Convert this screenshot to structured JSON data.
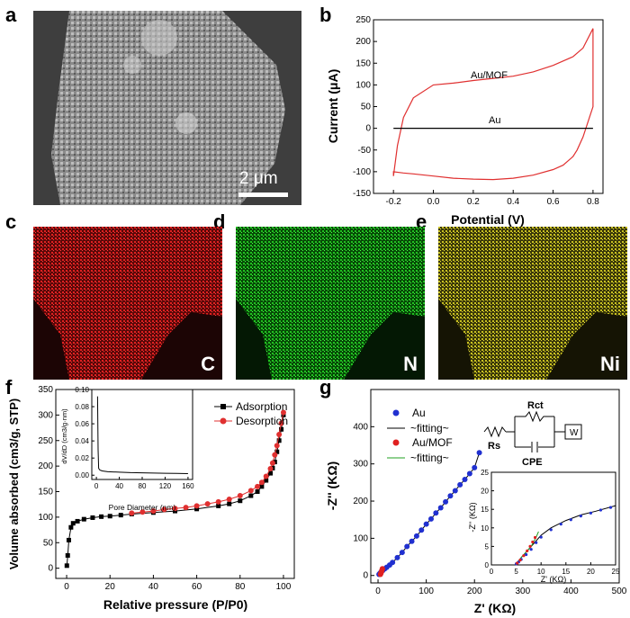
{
  "panel_labels": {
    "a": "a",
    "b": "b",
    "c": "c",
    "d": "d",
    "e": "e",
    "f": "f",
    "g": "g"
  },
  "sem": {
    "scale_bar": "2 μm"
  },
  "maps": [
    {
      "element": "C",
      "color": "#d01818"
    },
    {
      "element": "N",
      "color": "#18b018"
    },
    {
      "element": "Ni",
      "color": "#c8c020"
    }
  ],
  "chart_data": [
    {
      "panel": "b",
      "type": "line",
      "xlabel": "Potential (V)",
      "ylabel": "Current (μA)",
      "xlim": [
        -0.3,
        0.85
      ],
      "ylim": [
        -150,
        250
      ],
      "xticks": [
        "-0.2",
        "0.0",
        "0.2",
        "0.4",
        "0.6",
        "0.8"
      ],
      "yticks": [
        "-150",
        "-100",
        "-50",
        "0",
        "50",
        "100",
        "150",
        "200",
        "250"
      ],
      "series": [
        {
          "name": "Au/MOF",
          "color": "#e03030",
          "x": [
            -0.2,
            -0.18,
            -0.15,
            -0.1,
            0,
            0.1,
            0.2,
            0.3,
            0.4,
            0.5,
            0.6,
            0.7,
            0.75,
            0.8,
            0.8,
            0.8,
            0.75,
            0.72,
            0.7,
            0.65,
            0.6,
            0.5,
            0.4,
            0.3,
            0.2,
            0.1,
            0,
            -0.1,
            -0.15,
            -0.2,
            -0.2
          ],
          "y": [
            -110,
            -40,
            25,
            70,
            100,
            104,
            110,
            115,
            120,
            130,
            145,
            165,
            185,
            230,
            100,
            50,
            -20,
            -50,
            -65,
            -85,
            -95,
            -108,
            -115,
            -118,
            -117,
            -115,
            -110,
            -105,
            -103,
            -100,
            -110
          ]
        },
        {
          "name": "Au",
          "color": "#000000",
          "x": [
            -0.2,
            0.8
          ],
          "y": [
            0,
            0
          ]
        }
      ],
      "annotations": [
        "Au/MOF",
        "Au"
      ]
    },
    {
      "panel": "f",
      "type": "line",
      "xlabel": "Relative pressure (P/P0)",
      "ylabel": "Volume absorbed (cm3/g, STP)",
      "xlim": [
        -5,
        105
      ],
      "ylim": [
        -20,
        350
      ],
      "xticks": [
        "0",
        "20",
        "40",
        "60",
        "80",
        "100"
      ],
      "yticks": [
        "0",
        "50",
        "100",
        "150",
        "200",
        "250",
        "300",
        "350"
      ],
      "series": [
        {
          "name": "Adsorption",
          "color": "#000000",
          "x": [
            0.1,
            0.5,
            1,
            2,
            3,
            5,
            8,
            12,
            16,
            20,
            25,
            30,
            40,
            50,
            60,
            70,
            75,
            80,
            85,
            88,
            90,
            92,
            94,
            95,
            96,
            97,
            98,
            99,
            100
          ],
          "y": [
            5,
            25,
            55,
            80,
            88,
            92,
            96,
            99,
            101,
            102,
            104,
            106,
            109,
            112,
            116,
            122,
            126,
            132,
            142,
            150,
            160,
            172,
            186,
            196,
            208,
            228,
            250,
            272,
            300
          ]
        },
        {
          "name": "Desorption",
          "color": "#e03030",
          "x": [
            30,
            35,
            40,
            45,
            50,
            55,
            60,
            65,
            70,
            75,
            80,
            85,
            88,
            90,
            92,
            94,
            95,
            96,
            97,
            98,
            99,
            100
          ],
          "y": [
            108,
            110,
            112,
            115,
            117,
            119,
            122,
            126,
            130,
            135,
            142,
            152,
            160,
            168,
            180,
            195,
            206,
            222,
            240,
            262,
            284,
            305
          ]
        }
      ],
      "legend": [
        "Adsorption",
        "Desorption"
      ],
      "inset": {
        "type": "line",
        "xlabel": "Pore Diameter (nm)",
        "ylabel": "dV/dD (cm3/g·nm)",
        "xlim": [
          -8,
          168
        ],
        "ylim": [
          -0.005,
          0.1
        ],
        "xticks": [
          "0",
          "40",
          "80",
          "120",
          "160"
        ],
        "yticks": [
          "0.00",
          "0.02",
          "0.04",
          "0.06",
          "0.08",
          "0.10"
        ],
        "x": [
          2,
          3,
          4,
          6,
          10,
          20,
          40,
          60,
          80,
          100,
          120,
          140,
          160
        ],
        "y": [
          0.092,
          0.03,
          0.008,
          0.006,
          0.005,
          0.004,
          0.0035,
          0.003,
          0.0028,
          0.0025,
          0.0022,
          0.002,
          0.0018
        ]
      }
    },
    {
      "panel": "g",
      "type": "scatter",
      "xlabel": "Z' (KΩ)",
      "ylabel": "-Z'' (KΩ)",
      "xlim": [
        -15,
        500
      ],
      "ylim": [
        -20,
        500
      ],
      "xticks": [
        "0",
        "100",
        "200",
        "300",
        "400",
        "500"
      ],
      "yticks": [
        "0",
        "100",
        "200",
        "300",
        "400"
      ],
      "series": [
        {
          "name": "Au",
          "color": "#2030d0",
          "x": [
            2,
            4,
            6,
            8,
            10,
            14,
            18,
            24,
            30,
            40,
            50,
            60,
            70,
            80,
            90,
            100,
            110,
            120,
            130,
            140,
            150,
            160,
            170,
            180,
            190,
            200,
            210
          ],
          "y": [
            3,
            6,
            9,
            12,
            14,
            18,
            22,
            28,
            35,
            48,
            62,
            78,
            92,
            106,
            122,
            138,
            152,
            168,
            182,
            198,
            214,
            228,
            244,
            258,
            274,
            290,
            330
          ]
        },
        {
          "name": "Au/MOF",
          "color": "#e02020",
          "x": [
            5,
            6,
            7,
            8,
            9
          ],
          "y": [
            3,
            6,
            10,
            14,
            18
          ]
        }
      ],
      "fits": [
        {
          "name": "~fitting~",
          "color": "#000000"
        },
        {
          "name": "~fitting~",
          "color": "#20a020"
        }
      ],
      "circuit": {
        "labels": [
          "Rs",
          "Rct",
          "CPE",
          "W"
        ]
      },
      "inset": {
        "xlim": [
          0,
          25
        ],
        "ylim": [
          0,
          25
        ],
        "xticks": [
          "0",
          "5",
          "10",
          "15",
          "20",
          "25"
        ],
        "yticks": [
          "0",
          "5",
          "10",
          "15",
          "20",
          "25"
        ],
        "xlabel": "Z' (KΩ)",
        "ylabel": "-Z'' (KΩ)"
      }
    }
  ]
}
